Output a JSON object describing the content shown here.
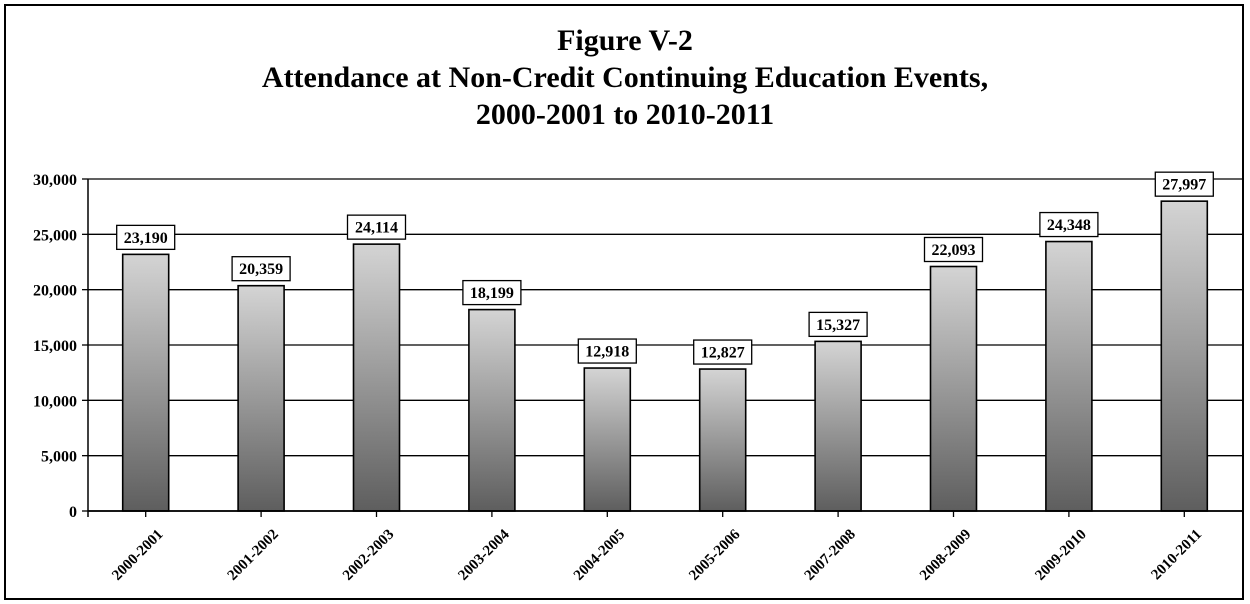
{
  "chart_data": {
    "type": "bar",
    "title": "Figure V-2",
    "subtitle_lines": [
      "Attendance at Non-Credit Continuing Education Events,",
      "2000-2001 to 2010-2011"
    ],
    "categories": [
      "2000-2001",
      "2001-2002",
      "2002-2003",
      "2003-2004",
      "2004-2005",
      "2005-2006",
      "2007-2008",
      "2008-2009",
      "2009-2010",
      "2010-2011"
    ],
    "values": [
      23190,
      20359,
      24114,
      18199,
      12918,
      12827,
      15327,
      22093,
      24348,
      27997
    ],
    "value_labels": [
      "23,190",
      "20,359",
      "24,114",
      "18,199",
      "12,918",
      "12,827",
      "15,327",
      "22,093",
      "24,348",
      "27,997"
    ],
    "ylim": [
      0,
      30000
    ],
    "yticks": [
      0,
      5000,
      10000,
      15000,
      20000,
      25000,
      30000
    ],
    "ytick_labels": [
      "0",
      "5,000",
      "10,000",
      "15,000",
      "20,000",
      "25,000",
      "30,000"
    ],
    "grid": true,
    "bar_gradient": [
      "#d4d4d4",
      "#5e5e5e"
    ],
    "bar_stroke": "#000000",
    "gridline_color": "#000000"
  }
}
